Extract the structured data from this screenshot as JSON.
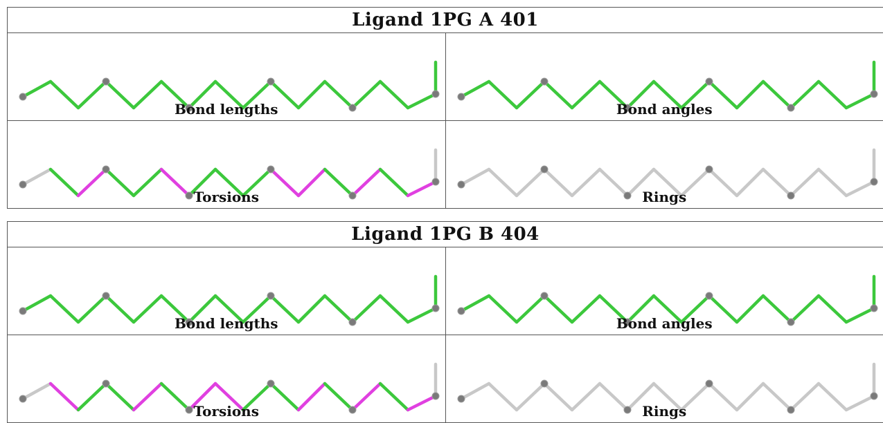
{
  "colors": {
    "green": "#3cc83c",
    "magenta": "#e040e0",
    "grey": "#c8c8c8",
    "atom": "#7a7a7a"
  },
  "ligands": [
    {
      "title": "Ligand 1PG A 401",
      "panels": [
        {
          "label": "Bond lengths",
          "bonds": [
            "green",
            "green",
            "green",
            "green",
            "green",
            "green",
            "green",
            "green",
            "green",
            "green",
            "green",
            "green",
            "green",
            "green",
            "green",
            "green"
          ]
        },
        {
          "label": "Bond angles",
          "bonds": [
            "green",
            "green",
            "green",
            "green",
            "green",
            "green",
            "green",
            "green",
            "green",
            "green",
            "green",
            "green",
            "green",
            "green",
            "green",
            "green"
          ]
        },
        {
          "label": "Torsions",
          "bonds": [
            "grey",
            "green",
            "magenta",
            "green",
            "green",
            "magenta",
            "green",
            "green",
            "green",
            "magenta",
            "magenta",
            "green",
            "magenta",
            "green",
            "magenta",
            "grey"
          ]
        },
        {
          "label": "Rings",
          "bonds": [
            "grey",
            "grey",
            "grey",
            "grey",
            "grey",
            "grey",
            "grey",
            "grey",
            "grey",
            "grey",
            "grey",
            "grey",
            "grey",
            "grey",
            "grey",
            "grey"
          ]
        }
      ]
    },
    {
      "title": "Ligand 1PG B 404",
      "panels": [
        {
          "label": "Bond lengths",
          "bonds": [
            "green",
            "green",
            "green",
            "green",
            "green",
            "green",
            "green",
            "green",
            "green",
            "green",
            "green",
            "green",
            "green",
            "green",
            "green",
            "green"
          ]
        },
        {
          "label": "Bond angles",
          "bonds": [
            "green",
            "green",
            "green",
            "green",
            "green",
            "green",
            "green",
            "green",
            "green",
            "green",
            "green",
            "green",
            "green",
            "green",
            "green",
            "green"
          ]
        },
        {
          "label": "Torsions",
          "bonds": [
            "grey",
            "magenta",
            "green",
            "green",
            "magenta",
            "green",
            "magenta",
            "magenta",
            "green",
            "green",
            "magenta",
            "green",
            "magenta",
            "green",
            "magenta",
            "grey"
          ]
        },
        {
          "label": "Rings",
          "bonds": [
            "grey",
            "grey",
            "grey",
            "grey",
            "grey",
            "grey",
            "grey",
            "grey",
            "grey",
            "grey",
            "grey",
            "grey",
            "grey",
            "grey",
            "grey",
            "grey"
          ]
        }
      ]
    }
  ]
}
